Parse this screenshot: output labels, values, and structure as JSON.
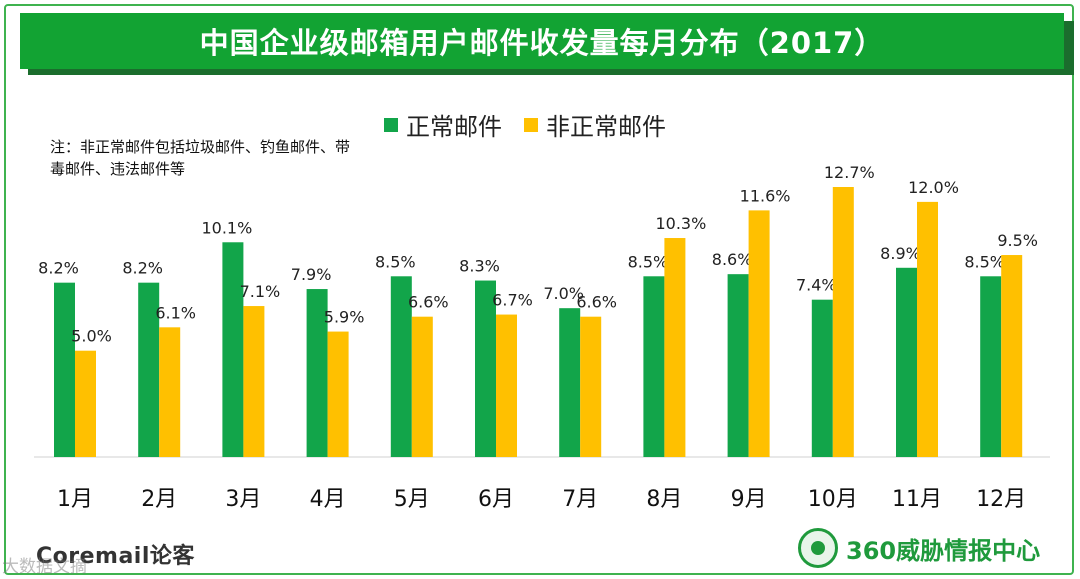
{
  "title": "中国企业级邮箱用户邮件收发量每月分布（2017）",
  "note": "注：非正常邮件包括垃圾邮件、钓鱼邮件、带毒邮件、违法邮件等",
  "colors": {
    "normal": "#12a54a",
    "abnormal": "#ffc000",
    "title_bg": "#12a333"
  },
  "legend": [
    {
      "label": "正常邮件",
      "color": "#12a54a"
    },
    {
      "label": "非正常邮件",
      "color": "#ffc000"
    }
  ],
  "chart_data": {
    "type": "bar",
    "title": "中国企业级邮箱用户邮件收发量每月分布（2017）",
    "categories": [
      "1月",
      "2月",
      "3月",
      "4月",
      "5月",
      "6月",
      "7月",
      "8月",
      "9月",
      "10月",
      "11月",
      "12月"
    ],
    "series": [
      {
        "name": "正常邮件",
        "values": [
          8.2,
          8.2,
          10.1,
          7.9,
          8.5,
          8.3,
          7.0,
          8.5,
          8.6,
          7.4,
          8.9,
          8.5
        ],
        "labels": [
          "8.2%",
          "8.2%",
          "10.1%",
          "7.9%",
          "8.5%",
          "8.3%",
          "7.0%",
          "8.5%",
          "8.6%",
          "7.4%",
          "8.9%",
          "8.5%"
        ]
      },
      {
        "name": "非正常邮件",
        "values": [
          5.0,
          6.1,
          7.1,
          5.9,
          6.6,
          6.7,
          6.6,
          10.3,
          11.6,
          12.7,
          12.0,
          9.5
        ],
        "labels": [
          "5.0%",
          "6.1%",
          "7.1%",
          "5.9%",
          "6.6%",
          "6.7%",
          "6.6%",
          "10.3%",
          "11.6%",
          "12.7%",
          "12.0%",
          "9.5%"
        ]
      }
    ],
    "ylim": [
      0,
      12.7
    ],
    "grid": false,
    "legend_position": "top-center",
    "xlabel": "",
    "ylabel": ""
  },
  "footer": {
    "left_logo": "Coremail论客",
    "right_logo": "360威胁情报中心",
    "watermark": "大数据文摘"
  }
}
